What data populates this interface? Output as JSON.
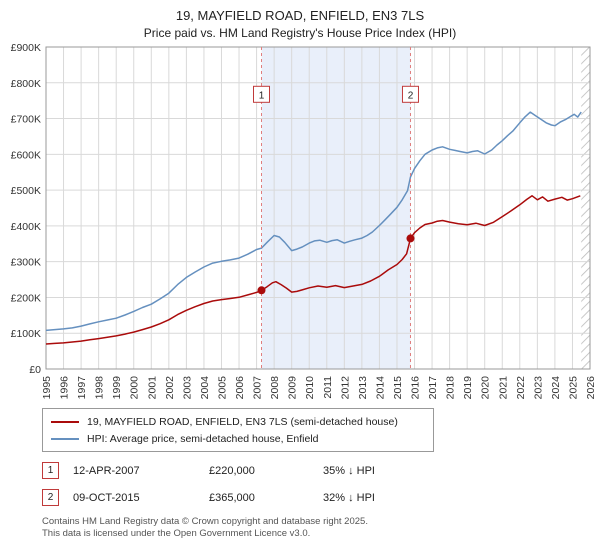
{
  "header": {
    "title": "19, MAYFIELD ROAD, ENFIELD, EN3 7LS",
    "subtitle": "Price paid vs. HM Land Registry's House Price Index (HPI)"
  },
  "chart_data": {
    "type": "line",
    "x_range": [
      1995,
      2026
    ],
    "y_range": [
      0,
      900000
    ],
    "x_ticks": [
      1995,
      1996,
      1997,
      1998,
      1999,
      2000,
      2001,
      2002,
      2003,
      2004,
      2005,
      2006,
      2007,
      2008,
      2009,
      2010,
      2011,
      2012,
      2013,
      2014,
      2015,
      2016,
      2017,
      2018,
      2019,
      2020,
      2021,
      2022,
      2023,
      2024,
      2025,
      2026
    ],
    "y_ticks": [
      {
        "v": 0,
        "label": "£0"
      },
      {
        "v": 100000,
        "label": "£100K"
      },
      {
        "v": 200000,
        "label": "£200K"
      },
      {
        "v": 300000,
        "label": "£300K"
      },
      {
        "v": 400000,
        "label": "£400K"
      },
      {
        "v": 500000,
        "label": "£500K"
      },
      {
        "v": 600000,
        "label": "£600K"
      },
      {
        "v": 700000,
        "label": "£700K"
      },
      {
        "v": 800000,
        "label": "£800K"
      },
      {
        "v": 900000,
        "label": "£900K"
      }
    ],
    "colors": {
      "property_line": "#aa0b0b",
      "hpi_line": "#6590bf",
      "shade": "#e9effa",
      "dashed_line": "#e07d7d",
      "grid": "#d9d9d9",
      "marker": "#aa0b0b"
    },
    "shaded_region": [
      2007.28,
      2015.77
    ],
    "hatch_region": [
      2025.5,
      2026
    ],
    "label_y": 765000,
    "series": [
      {
        "name": "19, MAYFIELD ROAD, ENFIELD, EN3 7LS (semi-detached house)",
        "color": "#aa0b0b",
        "points": [
          [
            1995.0,
            70000
          ],
          [
            1995.5,
            71500
          ],
          [
            1996.0,
            73000
          ],
          [
            1996.5,
            75500
          ],
          [
            1997.0,
            78000
          ],
          [
            1997.5,
            81500
          ],
          [
            1998.0,
            85000
          ],
          [
            1998.5,
            88500
          ],
          [
            1999.0,
            92500
          ],
          [
            1999.5,
            97500
          ],
          [
            2000.0,
            103000
          ],
          [
            2000.5,
            110000
          ],
          [
            2001.0,
            117500
          ],
          [
            2001.5,
            126500
          ],
          [
            2002.0,
            137500
          ],
          [
            2002.5,
            152000
          ],
          [
            2003.0,
            164000
          ],
          [
            2003.5,
            174000
          ],
          [
            2004.0,
            183000
          ],
          [
            2004.5,
            190000
          ],
          [
            2005.0,
            194000
          ],
          [
            2005.5,
            197000
          ],
          [
            2006.0,
            200500
          ],
          [
            2006.5,
            207000
          ],
          [
            2007.0,
            214000
          ],
          [
            2007.28,
            220000
          ],
          [
            2007.6,
            230000
          ],
          [
            2007.9,
            241000
          ],
          [
            2008.1,
            244000
          ],
          [
            2008.4,
            236000
          ],
          [
            2008.7,
            226000
          ],
          [
            2009.0,
            215000
          ],
          [
            2009.3,
            217000
          ],
          [
            2009.6,
            221000
          ],
          [
            2010.0,
            227000
          ],
          [
            2010.5,
            232000
          ],
          [
            2011.0,
            228500
          ],
          [
            2011.5,
            233000
          ],
          [
            2012.0,
            227500
          ],
          [
            2012.5,
            232000
          ],
          [
            2013.0,
            236500
          ],
          [
            2013.5,
            246000
          ],
          [
            2014.0,
            259000
          ],
          [
            2014.5,
            277000
          ],
          [
            2015.0,
            292000
          ],
          [
            2015.3,
            306000
          ],
          [
            2015.55,
            322000
          ],
          [
            2015.77,
            365000
          ],
          [
            2016.0,
            381000
          ],
          [
            2016.3,
            394000
          ],
          [
            2016.6,
            404000
          ],
          [
            2017.0,
            408000
          ],
          [
            2017.3,
            413000
          ],
          [
            2017.6,
            415000
          ],
          [
            2018.0,
            410500
          ],
          [
            2018.5,
            406000
          ],
          [
            2019.0,
            403000
          ],
          [
            2019.5,
            407500
          ],
          [
            2020.0,
            401000
          ],
          [
            2020.5,
            410000
          ],
          [
            2021.0,
            426000
          ],
          [
            2021.5,
            442000
          ],
          [
            2022.0,
            459000
          ],
          [
            2022.4,
            474000
          ],
          [
            2022.7,
            484000
          ],
          [
            2023.0,
            473000
          ],
          [
            2023.3,
            481000
          ],
          [
            2023.6,
            469000
          ],
          [
            2024.0,
            475000
          ],
          [
            2024.4,
            480000
          ],
          [
            2024.7,
            472000
          ],
          [
            2025.0,
            476000
          ],
          [
            2025.45,
            484000
          ]
        ]
      },
      {
        "name": "HPI: Average price, semi-detached house, Enfield",
        "color": "#6590bf",
        "points": [
          [
            1995.0,
            108000
          ],
          [
            1995.5,
            110000
          ],
          [
            1996.0,
            112000
          ],
          [
            1996.5,
            115000
          ],
          [
            1997.0,
            120000
          ],
          [
            1997.5,
            126000
          ],
          [
            1998.0,
            132000
          ],
          [
            1998.5,
            137000
          ],
          [
            1999.0,
            142000
          ],
          [
            1999.5,
            151000
          ],
          [
            2000.0,
            161000
          ],
          [
            2000.5,
            172000
          ],
          [
            2001.0,
            181000
          ],
          [
            2001.5,
            196000
          ],
          [
            2002.0,
            212000
          ],
          [
            2002.5,
            236000
          ],
          [
            2003.0,
            256000
          ],
          [
            2003.5,
            271000
          ],
          [
            2004.0,
            285000
          ],
          [
            2004.5,
            296000
          ],
          [
            2005.0,
            301000
          ],
          [
            2005.5,
            305000
          ],
          [
            2006.0,
            310000
          ],
          [
            2006.5,
            321000
          ],
          [
            2007.0,
            334000
          ],
          [
            2007.28,
            338000
          ],
          [
            2007.6,
            354000
          ],
          [
            2008.0,
            373000
          ],
          [
            2008.3,
            369000
          ],
          [
            2008.6,
            354000
          ],
          [
            2009.0,
            331000
          ],
          [
            2009.3,
            335000
          ],
          [
            2009.6,
            341000
          ],
          [
            2010.0,
            352000
          ],
          [
            2010.3,
            358000
          ],
          [
            2010.6,
            360000
          ],
          [
            2011.0,
            354000
          ],
          [
            2011.3,
            359000
          ],
          [
            2011.6,
            361000
          ],
          [
            2012.0,
            352000
          ],
          [
            2012.3,
            357000
          ],
          [
            2012.6,
            361000
          ],
          [
            2013.0,
            366000
          ],
          [
            2013.3,
            373000
          ],
          [
            2013.6,
            383000
          ],
          [
            2014.0,
            401000
          ],
          [
            2014.3,
            416000
          ],
          [
            2014.6,
            431000
          ],
          [
            2015.0,
            452000
          ],
          [
            2015.3,
            473000
          ],
          [
            2015.6,
            498000
          ],
          [
            2015.77,
            537000
          ],
          [
            2016.0,
            560000
          ],
          [
            2016.3,
            582000
          ],
          [
            2016.6,
            600000
          ],
          [
            2017.0,
            612000
          ],
          [
            2017.3,
            618000
          ],
          [
            2017.6,
            621000
          ],
          [
            2018.0,
            614000
          ],
          [
            2018.3,
            611000
          ],
          [
            2018.6,
            608000
          ],
          [
            2019.0,
            604000
          ],
          [
            2019.3,
            608000
          ],
          [
            2019.6,
            610000
          ],
          [
            2020.0,
            601000
          ],
          [
            2020.4,
            612000
          ],
          [
            2020.7,
            626000
          ],
          [
            2021.0,
            638000
          ],
          [
            2021.3,
            652000
          ],
          [
            2021.6,
            665000
          ],
          [
            2022.0,
            688000
          ],
          [
            2022.3,
            705000
          ],
          [
            2022.6,
            718000
          ],
          [
            2022.9,
            708000
          ],
          [
            2023.2,
            698000
          ],
          [
            2023.5,
            688000
          ],
          [
            2023.8,
            682000
          ],
          [
            2024.0,
            680000
          ],
          [
            2024.3,
            690000
          ],
          [
            2024.6,
            697000
          ],
          [
            2024.9,
            706000
          ],
          [
            2025.1,
            712000
          ],
          [
            2025.3,
            704000
          ],
          [
            2025.5,
            718000
          ]
        ]
      }
    ],
    "sales": [
      {
        "label": "1",
        "x": 2007.28,
        "y": 220000,
        "date": "12-APR-2007",
        "price": "£220,000",
        "hpi": "35% ↓ HPI"
      },
      {
        "label": "2",
        "x": 2015.77,
        "y": 365000,
        "date": "09-OCT-2015",
        "price": "£365,000",
        "hpi": "32% ↓ HPI"
      }
    ]
  },
  "footer": {
    "line1": "Contains HM Land Registry data © Crown copyright and database right 2025.",
    "line2": "This data is licensed under the Open Government Licence v3.0."
  }
}
